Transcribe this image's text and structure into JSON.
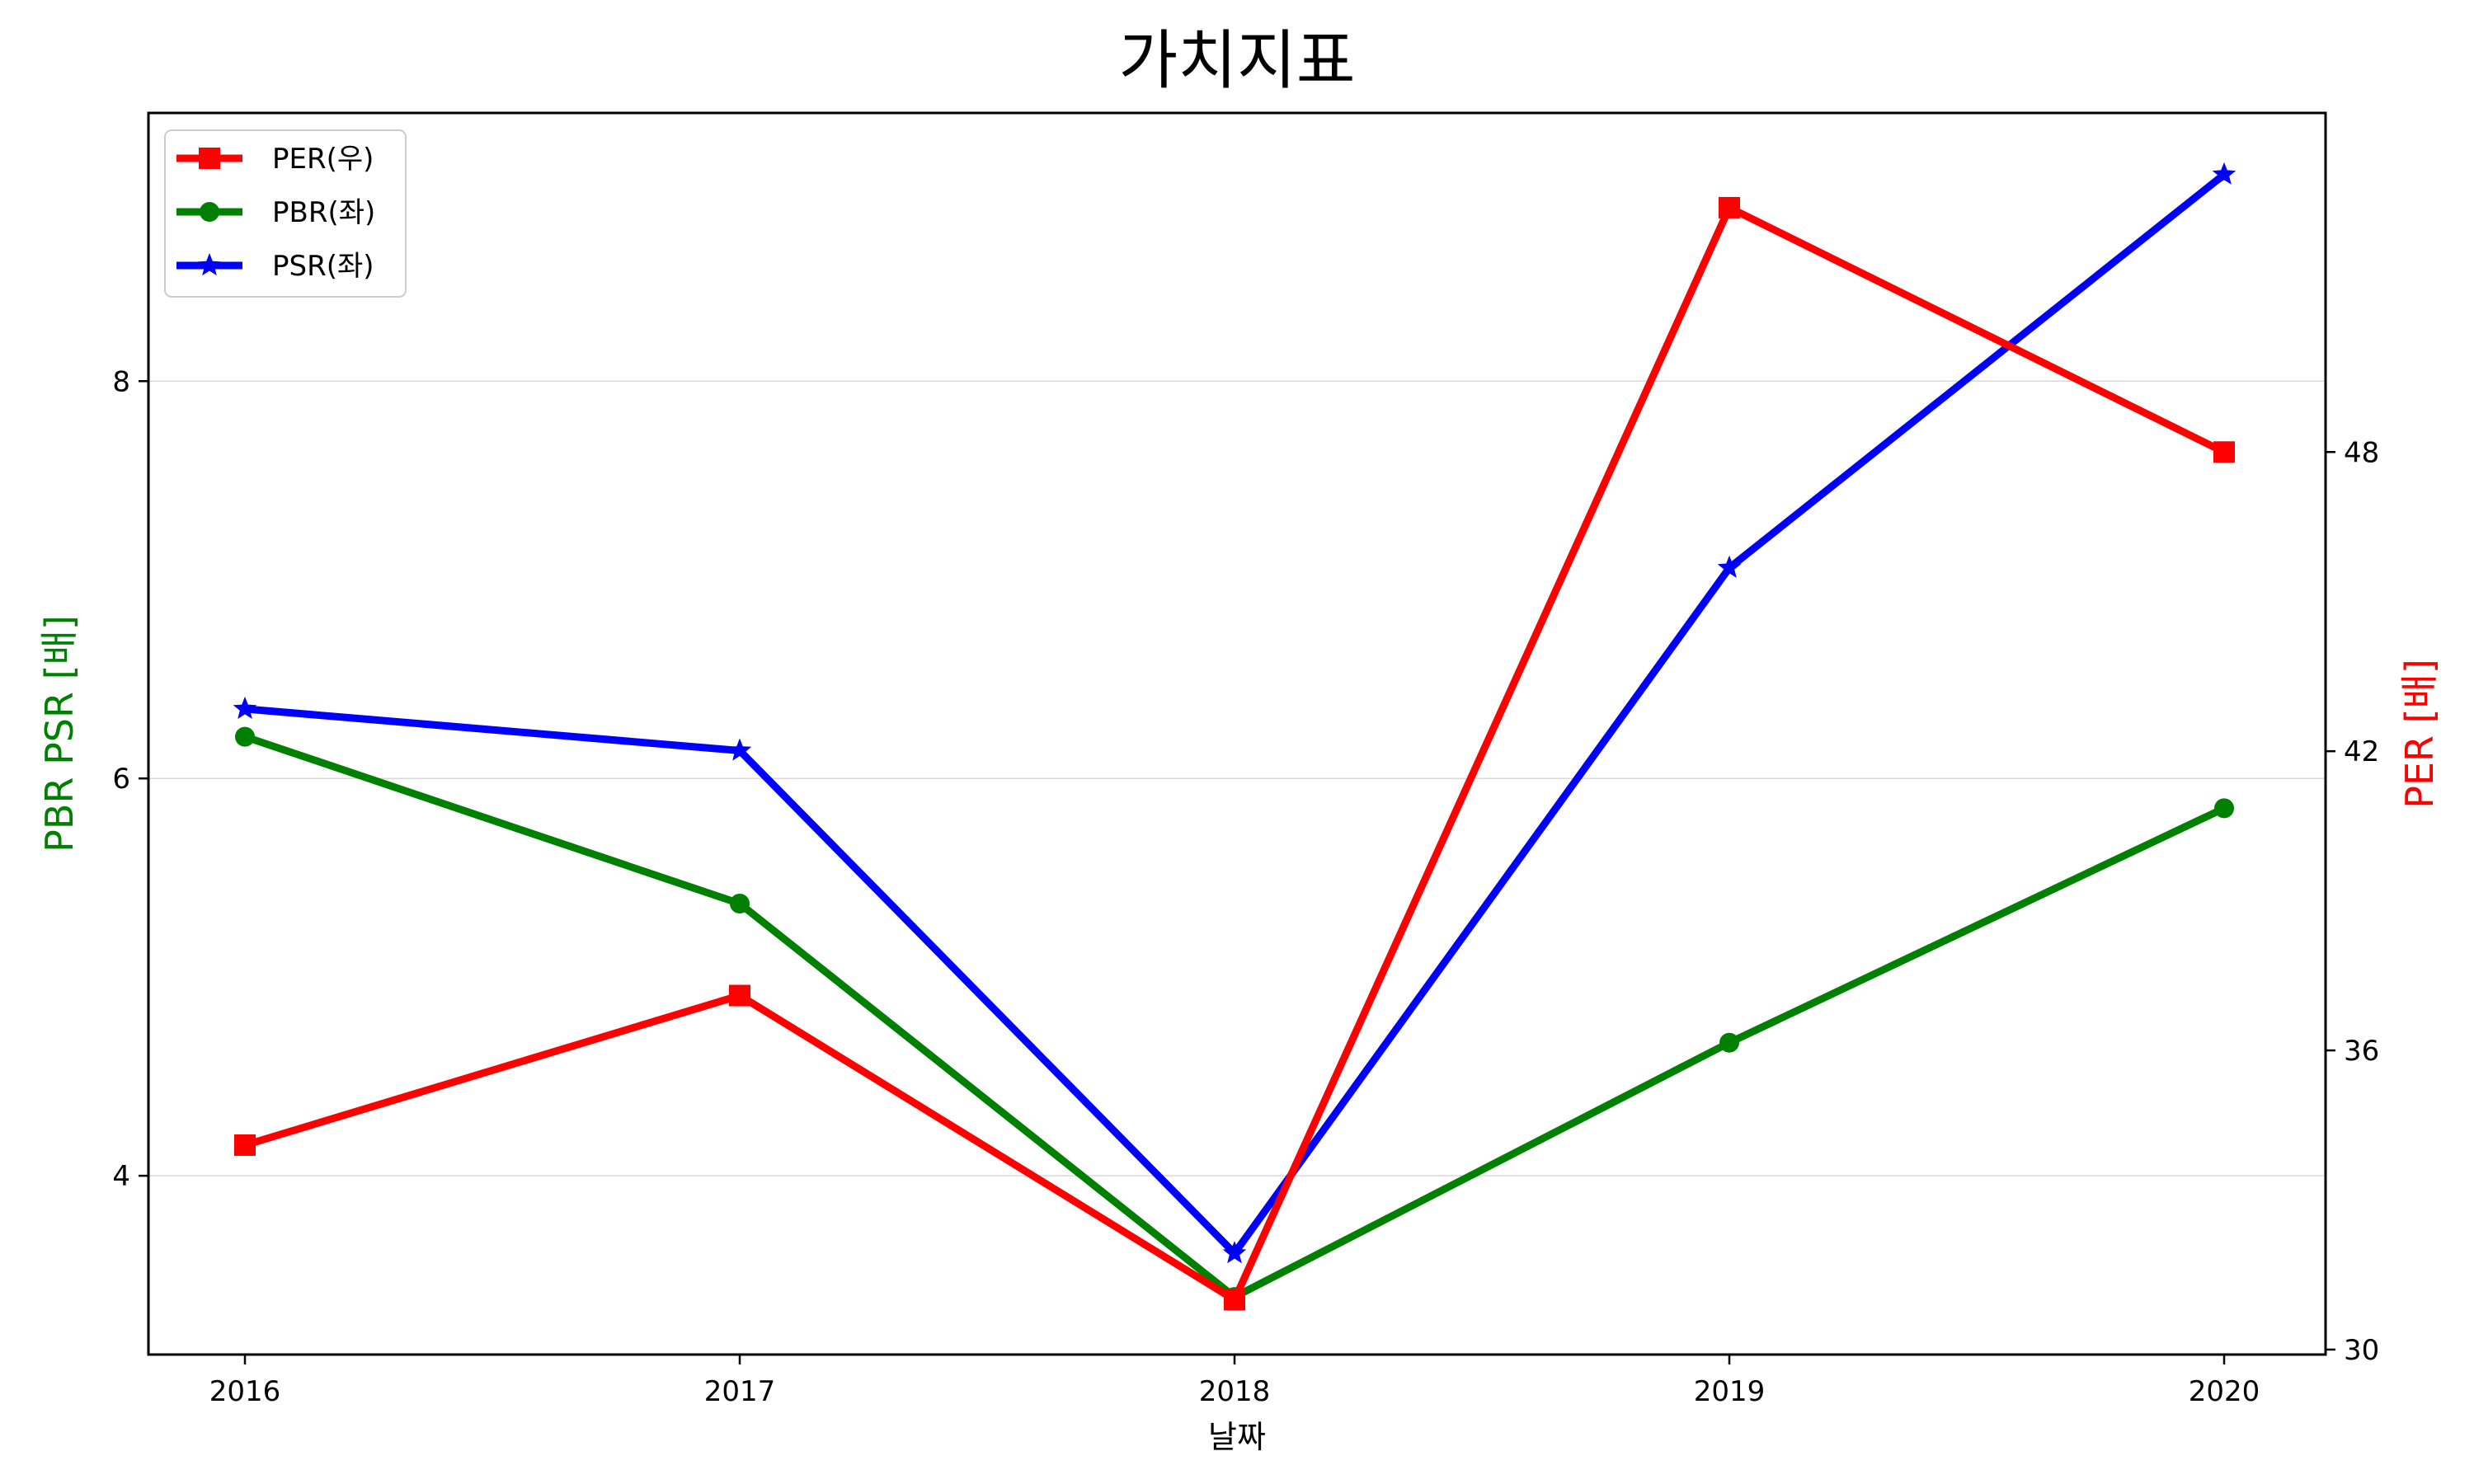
{
  "chart_data": {
    "type": "line",
    "title": "가치지표",
    "xlabel": "날짜",
    "ylabel_left": "PBR PSR [배]",
    "ylabel_right": "PER [배]",
    "categories": [
      "2016",
      "2017",
      "2018",
      "2019",
      "2020"
    ],
    "ylim_left": [
      3.1,
      9.35
    ],
    "ylim_right": [
      29.9,
      54.8
    ],
    "yticks_left": [
      4,
      6,
      8
    ],
    "yticks_right": [
      30,
      36,
      42,
      48
    ],
    "grid": "horizontal (left axis)",
    "legend_position": "upper-left",
    "series": [
      {
        "name": "PER(우)",
        "axis": "right",
        "color": "#ff0000",
        "marker": "square",
        "values": [
          34.1,
          37.1,
          31.0,
          52.9,
          48.0
        ]
      },
      {
        "name": "PBR(좌)",
        "axis": "left",
        "color": "#008000",
        "marker": "circle",
        "values": [
          6.21,
          5.37,
          3.39,
          4.67,
          5.85
        ]
      },
      {
        "name": "PSR(좌)",
        "axis": "left",
        "color": "#0000ff",
        "marker": "star",
        "values": [
          6.35,
          6.14,
          3.61,
          7.06,
          9.04
        ]
      }
    ]
  }
}
